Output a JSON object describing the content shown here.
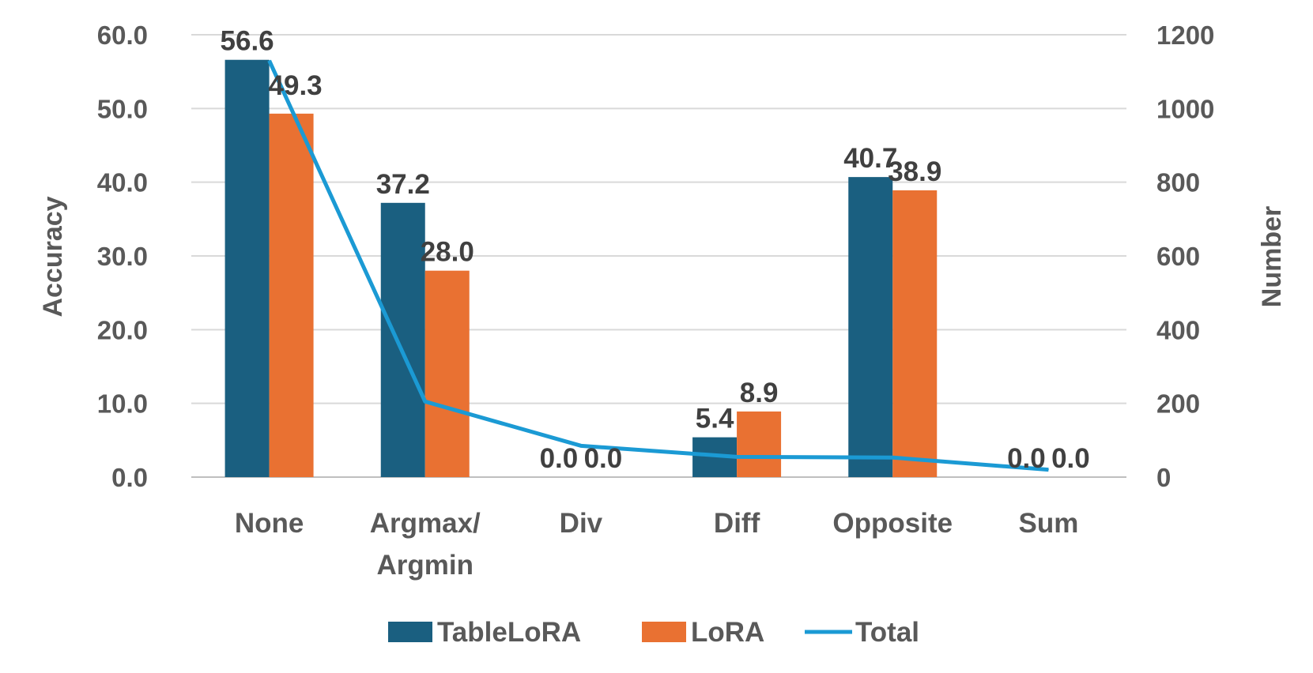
{
  "chart_data": {
    "type": "bar",
    "categories": [
      [
        "None"
      ],
      [
        "Argmax/",
        "Argmin"
      ],
      [
        "Div"
      ],
      [
        "Diff"
      ],
      [
        "Opposite"
      ],
      [
        "Sum"
      ]
    ],
    "series": [
      {
        "name": "TableLoRA",
        "kind": "bar",
        "axis": "left",
        "color": "#1a5f80",
        "values": [
          56.6,
          37.2,
          0.0,
          5.4,
          40.7,
          0.0
        ],
        "labels": [
          "56.6",
          "37.2",
          "0.0",
          "5.4",
          "40.7",
          "0.0"
        ]
      },
      {
        "name": "LoRA",
        "kind": "bar",
        "axis": "left",
        "color": "#e97132",
        "values": [
          49.3,
          28.0,
          0.0,
          8.9,
          38.9,
          0.0
        ],
        "labels": [
          "49.3",
          "28.0",
          "0.0",
          "8.9",
          "38.9",
          "0.0"
        ]
      },
      {
        "name": "Total",
        "kind": "line",
        "axis": "right",
        "color": "#1b9ad4",
        "values": [
          1130,
          205,
          85,
          55,
          53,
          20
        ]
      }
    ],
    "y_left": {
      "label": "Accuracy",
      "range": [
        0,
        60
      ],
      "ticks": [
        "0.0",
        "10.0",
        "20.0",
        "30.0",
        "40.0",
        "50.0",
        "60.0"
      ]
    },
    "y_right": {
      "label": "Number",
      "range": [
        0,
        1200
      ],
      "ticks": [
        "0",
        "200",
        "400",
        "600",
        "800",
        "1000",
        "1200"
      ]
    },
    "gridlines": true,
    "legend": {
      "position": "bottom",
      "entries": [
        "TableLoRA",
        "LoRA",
        "Total"
      ]
    }
  }
}
